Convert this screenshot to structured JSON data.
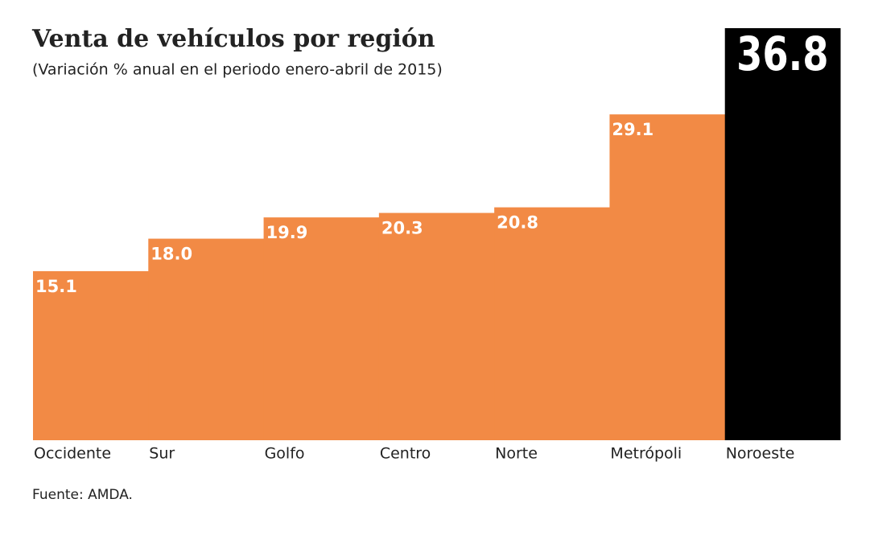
{
  "chart_data": {
    "type": "bar",
    "title": "Venta de vehículos por región",
    "subtitle": "(Variación % anual en el periodo enero-abril de 2015)",
    "categories": [
      "Occidente",
      "Sur",
      "Golfo",
      "Centro",
      "Norte",
      "Metrópoli",
      "Noroeste"
    ],
    "values": [
      15.1,
      18.0,
      19.9,
      20.3,
      20.8,
      29.1,
      36.8
    ],
    "value_labels": [
      "15.1",
      "18.0",
      "19.9",
      "20.3",
      "20.8",
      "29.1",
      "36.8"
    ],
    "colors": [
      "#f28a45",
      "#f28a45",
      "#f28a45",
      "#f28a45",
      "#f28a45",
      "#f28a45",
      "#000000"
    ],
    "source": "Fuente: AMDA."
  }
}
